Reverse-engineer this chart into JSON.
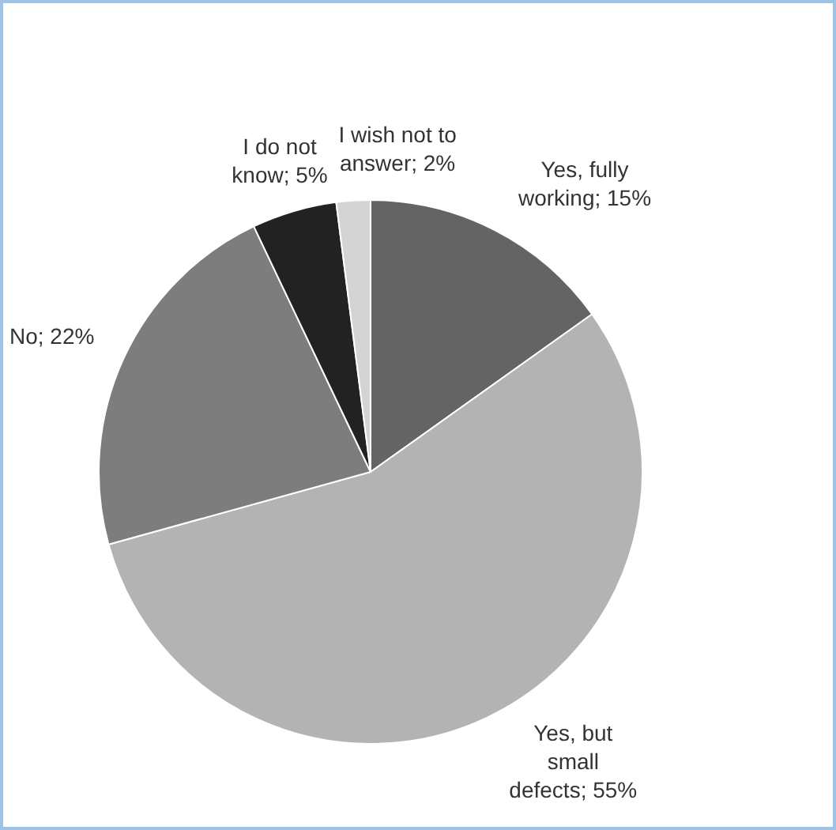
{
  "chart_data": {
    "type": "pie",
    "categories": [
      "Yes, fully working",
      "Yes, but small defects",
      "No",
      "I do not know",
      "I wish not to answer"
    ],
    "values": [
      15,
      55,
      22,
      5,
      2
    ],
    "value_labels": [
      "15%",
      "55%",
      "22%",
      "5%",
      "2%"
    ],
    "colors": [
      "#646464",
      "#b3b3b3",
      "#7d7d7d",
      "#222222",
      "#d4d4d4"
    ],
    "data_labels": true
  }
}
